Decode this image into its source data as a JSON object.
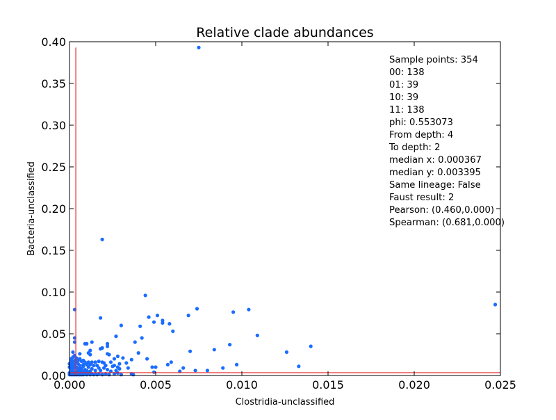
{
  "chart_data": {
    "type": "scatter",
    "title": "Relative clade abundances",
    "xlabel": "Clostridia-unclassified",
    "ylabel": "Bacteria-unclassified",
    "xlim": [
      0.0,
      0.025
    ],
    "ylim": [
      0.0,
      0.4
    ],
    "xticks": [
      0.0,
      0.005,
      0.01,
      0.015,
      0.02,
      0.025
    ],
    "xtick_labels": [
      "0.000",
      "0.005",
      "0.010",
      "0.015",
      "0.020",
      "0.025"
    ],
    "yticks": [
      0.0,
      0.05,
      0.1,
      0.15,
      0.2,
      0.25,
      0.3,
      0.35,
      0.4
    ],
    "ytick_labels": [
      "0.00",
      "0.05",
      "0.10",
      "0.15",
      "0.20",
      "0.25",
      "0.30",
      "0.35",
      "0.40"
    ],
    "grid": false,
    "marker_color": "#1a6cff",
    "median_line_color": "#e8262a",
    "median_x": 0.000367,
    "median_y": 0.003395,
    "annotation_lines": [
      "Sample points: 354",
      "00: 138",
      "01: 39",
      "10: 39",
      "11: 138",
      "phi: 0.553073",
      "From depth: 4",
      "To depth: 2",
      "median x: 0.000367",
      "median y: 0.003395",
      "Same lineage: False",
      "Faust result: 2",
      "Pearson: (0.460,0.000)",
      "Spearman: (0.681,0.000)"
    ],
    "points": [
      [
        0.0075,
        0.393
      ],
      [
        0.0019,
        0.163
      ],
      [
        0.0044,
        0.096
      ],
      [
        0.0247,
        0.085
      ],
      [
        0.0074,
        0.08
      ],
      [
        0.0104,
        0.079
      ],
      [
        0.0003,
        0.079
      ],
      [
        0.0095,
        0.076
      ],
      [
        0.0051,
        0.072
      ],
      [
        0.0069,
        0.072
      ],
      [
        0.0046,
        0.07
      ],
      [
        0.0018,
        0.069
      ],
      [
        0.0054,
        0.066
      ],
      [
        0.0054,
        0.063
      ],
      [
        0.0049,
        0.064
      ],
      [
        0.0058,
        0.062
      ],
      [
        0.003,
        0.06
      ],
      [
        0.0041,
        0.059
      ],
      [
        0.006,
        0.053
      ],
      [
        0.0109,
        0.048
      ],
      [
        0.0027,
        0.047
      ],
      [
        0.0042,
        0.045
      ],
      [
        0.0003,
        0.045
      ],
      [
        0.0003,
        0.04
      ],
      [
        0.0013,
        0.04
      ],
      [
        0.001,
        0.038
      ],
      [
        0.0009,
        0.038
      ],
      [
        0.0022,
        0.038
      ],
      [
        0.0038,
        0.04
      ],
      [
        0.0022,
        0.035
      ],
      [
        0.0093,
        0.037
      ],
      [
        0.014,
        0.035
      ],
      [
        0.0019,
        0.033
      ],
      [
        0.0018,
        0.032
      ],
      [
        0.0084,
        0.031
      ],
      [
        0.0012,
        0.03
      ],
      [
        0.007,
        0.029
      ],
      [
        0.0126,
        0.028
      ],
      [
        0.004,
        0.027
      ],
      [
        0.0002,
        0.028
      ],
      [
        0.0022,
        0.026
      ],
      [
        0.0023,
        0.025
      ],
      [
        0.0012,
        0.025
      ],
      [
        0.0011,
        0.027
      ],
      [
        0.0028,
        0.023
      ],
      [
        0.0031,
        0.021
      ],
      [
        0.0026,
        0.02
      ],
      [
        0.0045,
        0.02
      ],
      [
        0.0036,
        0.019
      ],
      [
        0.0006,
        0.026
      ],
      [
        0.0004,
        0.02
      ],
      [
        0.0007,
        0.017
      ],
      [
        0.0009,
        0.016
      ],
      [
        0.0011,
        0.016
      ],
      [
        0.0013,
        0.016
      ],
      [
        0.0015,
        0.016
      ],
      [
        0.0017,
        0.017
      ],
      [
        0.0019,
        0.016
      ],
      [
        0.002,
        0.015
      ],
      [
        0.0024,
        0.016
      ],
      [
        0.0033,
        0.015
      ],
      [
        0.0059,
        0.016
      ],
      [
        0.0057,
        0.013
      ],
      [
        0.0097,
        0.013
      ],
      [
        0.0133,
        0.011
      ],
      [
        0.0048,
        0.01
      ],
      [
        0.005,
        0.01
      ],
      [
        0.0066,
        0.009
      ],
      [
        0.0089,
        0.009
      ],
      [
        0.0034,
        0.009
      ],
      [
        0.0029,
        0.008
      ],
      [
        0.0025,
        0.011
      ],
      [
        0.0026,
        0.012
      ],
      [
        0.002,
        0.009
      ],
      [
        0.0016,
        0.012
      ],
      [
        0.0014,
        0.012
      ],
      [
        0.0012,
        0.013
      ],
      [
        0.001,
        0.013
      ],
      [
        0.0008,
        0.013
      ],
      [
        0.0005,
        0.014
      ],
      [
        0.0003,
        0.013
      ],
      [
        0.0002,
        0.012
      ],
      [
        0.0001,
        0.016
      ],
      [
        0.0001,
        0.02
      ],
      [
        0.0073,
        0.006
      ],
      [
        0.008,
        0.006
      ],
      [
        0.0064,
        0.005
      ],
      [
        0.0049,
        0.004
      ],
      [
        0.003,
        0.001
      ],
      [
        0.0036,
        0.002
      ],
      [
        0.0037,
        0.001
      ],
      [
        0.0024,
        0.005
      ],
      [
        0.0022,
        0.007
      ],
      [
        0.0018,
        0.006
      ],
      [
        0.0015,
        0.006
      ],
      [
        0.0012,
        0.005
      ],
      [
        0.001,
        0.006
      ],
      [
        0.0009,
        0.007
      ],
      [
        0.0007,
        0.008
      ],
      [
        0.0006,
        0.006
      ],
      [
        0.0005,
        0.008
      ],
      [
        0.0004,
        0.01
      ],
      [
        0.0003,
        0.009
      ],
      [
        0.0002,
        0.007
      ],
      [
        0.0001,
        0.005
      ],
      [
        0.0001,
        0.009
      ],
      [
        0.0002,
        0.003
      ],
      [
        0.0003,
        0.004
      ],
      [
        0.0004,
        0.003
      ],
      [
        0.0005,
        0.002
      ],
      [
        0.0006,
        0.003
      ],
      [
        0.0007,
        0.002
      ],
      [
        0.0008,
        0.001
      ],
      [
        0.0009,
        0.002
      ],
      [
        0.001,
        0.001
      ],
      [
        0.0011,
        0.002
      ],
      [
        0.0012,
        0.001
      ],
      [
        0.0013,
        0.002
      ],
      [
        0.0014,
        0.001
      ],
      [
        0.0015,
        0.002
      ],
      [
        0.0016,
        0.001
      ],
      [
        0.0017,
        0.002
      ],
      [
        0.0019,
        0.001
      ],
      [
        0.0021,
        0.002
      ],
      [
        0.0023,
        0.001
      ],
      [
        0.0026,
        0.002
      ],
      [
        0.0028,
        0.003
      ],
      [
        0.0027,
        0.006
      ],
      [
        0.0028,
        0.01
      ],
      [
        0.0029,
        0.014
      ],
      [
        0.0021,
        0.012
      ],
      [
        0.0017,
        0.009
      ],
      [
        0.0013,
        0.008
      ],
      [
        0.0011,
        0.01
      ],
      [
        0.0008,
        0.011
      ],
      [
        0.0006,
        0.012
      ],
      [
        0.0004,
        0.016
      ],
      [
        0.0005,
        0.018
      ],
      [
        0.0003,
        0.018
      ],
      [
        0.0002,
        0.016
      ],
      [
        0.0001,
        0.012
      ],
      [
        0.0,
        0.003
      ],
      [
        0.0,
        0.001
      ],
      [
        0.0001,
        0.001
      ],
      [
        0.0002,
        0.001
      ],
      [
        0.0003,
        0.001
      ],
      [
        0.0004,
        0.001
      ],
      [
        0.0005,
        0.001
      ],
      [
        0.0006,
        0.001
      ],
      [
        0.0007,
        0.001
      ],
      [
        0.0001,
        0.002
      ],
      [
        0.0003,
        0.002
      ],
      [
        0.0004,
        0.005
      ],
      [
        0.0005,
        0.005
      ],
      [
        0.0006,
        0.009
      ],
      [
        0.0007,
        0.005
      ],
      [
        0.0008,
        0.004
      ],
      [
        0.0009,
        0.004
      ],
      [
        0.001,
        0.003
      ],
      [
        0.0011,
        0.004
      ],
      [
        0.0002,
        0.006
      ],
      [
        0.0001,
        0.007
      ],
      [
        0.0,
        0.01
      ],
      [
        0.0,
        0.014
      ],
      [
        0.0001,
        0.018
      ],
      [
        0.0002,
        0.022
      ],
      [
        0.0003,
        0.024
      ],
      [
        0.0004,
        0.021
      ],
      [
        0.0006,
        0.02
      ],
      [
        0.0008,
        0.018
      ],
      [
        0.0002,
        0.01
      ],
      [
        0.0003,
        0.011
      ]
    ]
  }
}
